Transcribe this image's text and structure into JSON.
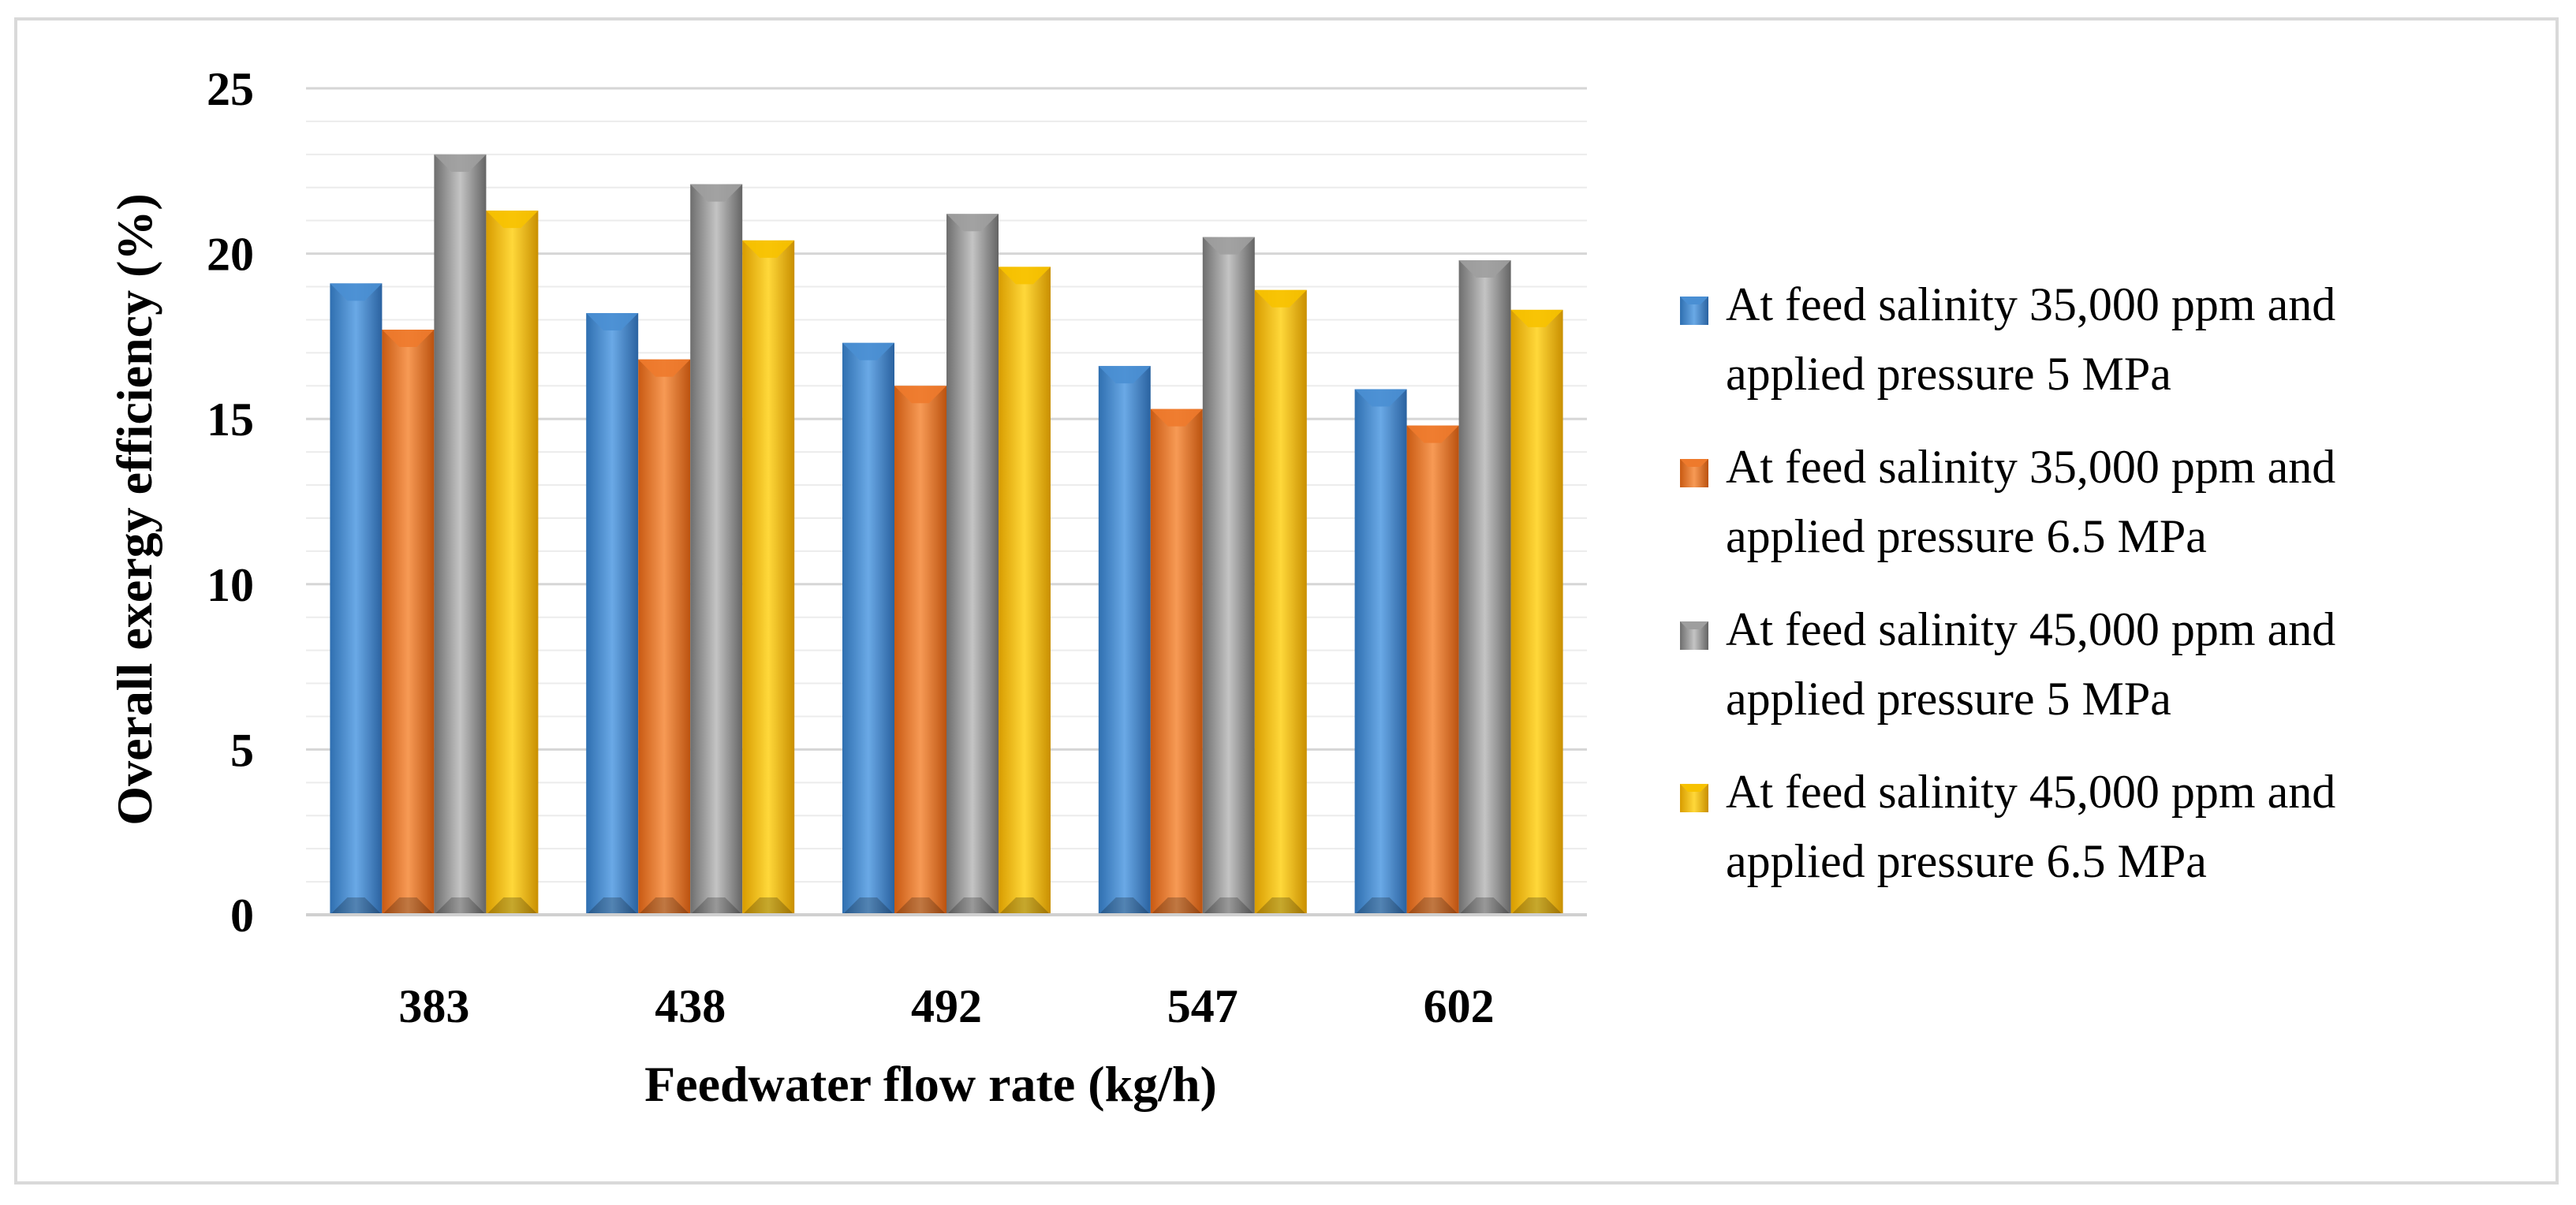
{
  "chart_data": {
    "type": "bar",
    "title": "",
    "xlabel": "Feedwater flow rate (kg/h)",
    "ylabel": "Overall exergy efficiency (%)",
    "ylim": [
      0,
      25
    ],
    "yticks": [
      "0",
      "5",
      "10",
      "15",
      "20",
      "25"
    ],
    "categories": [
      "383",
      "438",
      "492",
      "547",
      "602"
    ],
    "grid": true,
    "legend_position": "right",
    "series": [
      {
        "name": "At feed salinity 35,000 ppm and applied pressure 5 MPa",
        "legend_lines": [
          "At feed salinity 35,000 ppm and",
          "applied pressure 5 MPa"
        ],
        "color": "#4a8fd3",
        "values": [
          19.1,
          18.2,
          17.3,
          16.6,
          15.9
        ]
      },
      {
        "name": "At feed salinity 35,000 ppm and applied pressure 6.5 MPa",
        "legend_lines": [
          "At feed salinity 35,000 ppm and",
          "applied pressure 6.5 MPa"
        ],
        "color": "#ee7a2c",
        "values": [
          17.7,
          16.8,
          16.0,
          15.3,
          14.8
        ]
      },
      {
        "name": "At feed salinity 45,000 ppm and applied pressure 5 MPa",
        "legend_lines": [
          "At feed salinity 45,000 ppm and",
          "applied pressure 5 MPa"
        ],
        "color": "#9e9e9e",
        "values": [
          23.0,
          22.1,
          21.2,
          20.5,
          19.8
        ]
      },
      {
        "name": "At feed salinity 45,000 ppm and applied pressure 6.5 MPa",
        "legend_lines": [
          "At feed salinity 45,000 ppm and",
          "applied pressure 6.5 MPa"
        ],
        "color": "#f7c200",
        "values": [
          21.3,
          20.4,
          19.6,
          18.9,
          18.3
        ]
      }
    ]
  }
}
